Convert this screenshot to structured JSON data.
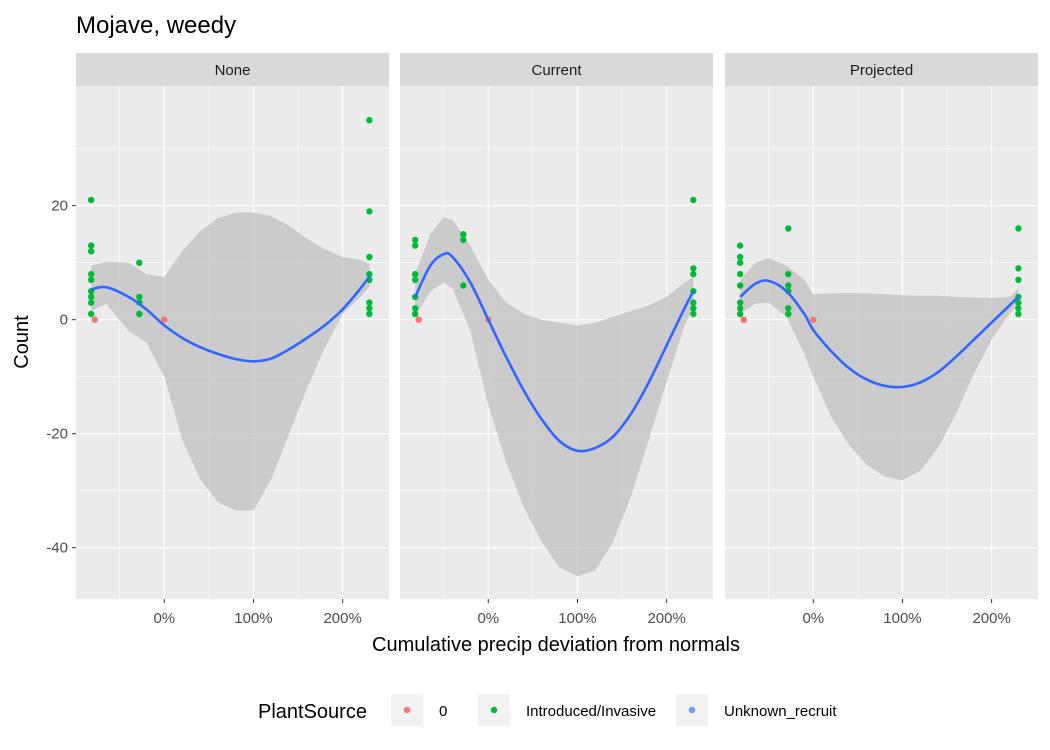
{
  "chart_data": {
    "type": "scatter",
    "title": "Mojave, weedy",
    "xlabel": "Cumulative precip deviation from normals",
    "ylabel": "Count",
    "xlim": [
      -0.99,
      2.52
    ],
    "ylim": [
      -49,
      41
    ],
    "x_ticks": [
      0,
      1,
      2
    ],
    "x_tick_labels": [
      "0%",
      "100%",
      "200%"
    ],
    "y_ticks": [
      -40,
      -20,
      0,
      20
    ],
    "y_tick_labels": [
      "-40",
      "-20",
      "0",
      "20"
    ],
    "grid": true,
    "legend": {
      "title": "PlantSource",
      "position": "bottom",
      "entries": [
        {
          "label": "0",
          "color": "#F8766D"
        },
        {
          "label": "Introduced/Invasive",
          "color": "#00BA38"
        },
        {
          "label": "Unknown_recruit",
          "color": "#619CFF"
        }
      ]
    },
    "colors": {
      "zero": "#F8766D",
      "introduced": "#00BA38",
      "unknown": "#619CFF",
      "smooth_line": "#3366FF",
      "ribbon": "#C0C0C0",
      "panel_bg": "#EBEBEB",
      "strip_bg": "#D9D9D9"
    },
    "panels": [
      {
        "label": "None",
        "points": [
          {
            "x": -0.82,
            "y": 21,
            "source": "Introduced/Invasive"
          },
          {
            "x": -0.82,
            "y": 13,
            "source": "Introduced/Invasive"
          },
          {
            "x": -0.82,
            "y": 12,
            "source": "Introduced/Invasive"
          },
          {
            "x": -0.82,
            "y": 8,
            "source": "Introduced/Invasive"
          },
          {
            "x": -0.82,
            "y": 7,
            "source": "Introduced/Invasive"
          },
          {
            "x": -0.82,
            "y": 5,
            "source": "Introduced/Invasive"
          },
          {
            "x": -0.82,
            "y": 4,
            "source": "Introduced/Invasive"
          },
          {
            "x": -0.82,
            "y": 3,
            "source": "Introduced/Invasive"
          },
          {
            "x": -0.82,
            "y": 1,
            "source": "Introduced/Invasive"
          },
          {
            "x": -0.78,
            "y": 0,
            "source": "0"
          },
          {
            "x": -0.28,
            "y": 10,
            "source": "Introduced/Invasive"
          },
          {
            "x": -0.28,
            "y": 4,
            "source": "Introduced/Invasive"
          },
          {
            "x": -0.28,
            "y": 3,
            "source": "Introduced/Invasive"
          },
          {
            "x": -0.28,
            "y": 1,
            "source": "Introduced/Invasive"
          },
          {
            "x": 0.0,
            "y": 0,
            "source": "0"
          },
          {
            "x": 2.3,
            "y": 35,
            "source": "Introduced/Invasive"
          },
          {
            "x": 2.3,
            "y": 19,
            "source": "Introduced/Invasive"
          },
          {
            "x": 2.3,
            "y": 11,
            "source": "Introduced/Invasive"
          },
          {
            "x": 2.3,
            "y": 8,
            "source": "Introduced/Invasive"
          },
          {
            "x": 2.3,
            "y": 7,
            "source": "Introduced/Invasive"
          },
          {
            "x": 2.3,
            "y": 3,
            "source": "Introduced/Invasive"
          },
          {
            "x": 2.3,
            "y": 2,
            "source": "Introduced/Invasive"
          },
          {
            "x": 2.3,
            "y": 1,
            "source": "Introduced/Invasive"
          }
        ],
        "smooth": {
          "x": [
            -0.82,
            -0.65,
            -0.4,
            -0.2,
            0.0,
            0.2,
            0.4,
            0.6,
            0.8,
            1.0,
            1.2,
            1.4,
            1.6,
            1.8,
            2.0,
            2.2,
            2.3
          ],
          "y": [
            5.3,
            5.7,
            4.0,
            1.8,
            -1.0,
            -3.2,
            -4.8,
            -6.0,
            -6.9,
            -7.3,
            -6.8,
            -5.2,
            -3.2,
            -1.0,
            1.8,
            5.5,
            7.6
          ],
          "ymin": [
            1.5,
            2.8,
            -2.0,
            -4.0,
            -10.0,
            -21.0,
            -28.0,
            -32.0,
            -33.5,
            -33.5,
            -28.0,
            -20.0,
            -12.0,
            -5.0,
            1.0,
            4.0,
            5.8
          ],
          "ymax": [
            9.5,
            10.2,
            10.0,
            8.0,
            7.5,
            12.0,
            15.5,
            17.8,
            18.8,
            18.8,
            18.2,
            16.5,
            14.2,
            12.4,
            11.0,
            10.5,
            9.8
          ]
        }
      },
      {
        "label": "Current",
        "points": [
          {
            "x": -0.82,
            "y": 14,
            "source": "Introduced/Invasive"
          },
          {
            "x": -0.82,
            "y": 13,
            "source": "Introduced/Invasive"
          },
          {
            "x": -0.82,
            "y": 8,
            "source": "Introduced/Invasive"
          },
          {
            "x": -0.82,
            "y": 7,
            "source": "Introduced/Invasive"
          },
          {
            "x": -0.82,
            "y": 4,
            "source": "Introduced/Invasive"
          },
          {
            "x": -0.82,
            "y": 2,
            "source": "Introduced/Invasive"
          },
          {
            "x": -0.82,
            "y": 1,
            "source": "Introduced/Invasive"
          },
          {
            "x": -0.78,
            "y": 0,
            "source": "0"
          },
          {
            "x": -0.28,
            "y": 15,
            "source": "Introduced/Invasive"
          },
          {
            "x": -0.28,
            "y": 14,
            "source": "Introduced/Invasive"
          },
          {
            "x": -0.28,
            "y": 6,
            "source": "Introduced/Invasive"
          },
          {
            "x": 0.0,
            "y": 0,
            "source": "0"
          },
          {
            "x": 2.3,
            "y": 21,
            "source": "Introduced/Invasive"
          },
          {
            "x": 2.3,
            "y": 9,
            "source": "Introduced/Invasive"
          },
          {
            "x": 2.3,
            "y": 8,
            "source": "Introduced/Invasive"
          },
          {
            "x": 2.3,
            "y": 5,
            "source": "Introduced/Invasive"
          },
          {
            "x": 2.3,
            "y": 3,
            "source": "Introduced/Invasive"
          },
          {
            "x": 2.3,
            "y": 2,
            "source": "Introduced/Invasive"
          },
          {
            "x": 2.3,
            "y": 1,
            "source": "Introduced/Invasive"
          }
        ],
        "smooth": {
          "x": [
            -0.82,
            -0.65,
            -0.5,
            -0.4,
            -0.2,
            0.0,
            0.2,
            0.4,
            0.6,
            0.8,
            1.0,
            1.2,
            1.4,
            1.6,
            1.8,
            2.0,
            2.2,
            2.3
          ],
          "y": [
            4.0,
            9.5,
            11.5,
            11.0,
            6.5,
            0.0,
            -6.5,
            -12.5,
            -17.5,
            -21.3,
            -23.0,
            -22.5,
            -20.5,
            -16.5,
            -11.0,
            -4.5,
            2.0,
            5.0
          ],
          "ymin": [
            0.5,
            5.0,
            6.5,
            5.5,
            -2.0,
            -15.0,
            -25.0,
            -33.0,
            -39.0,
            -43.5,
            -45.0,
            -44.0,
            -39.0,
            -31.0,
            -21.0,
            -11.0,
            -1.0,
            2.0
          ],
          "ymax": [
            8.0,
            15.0,
            18.0,
            17.5,
            13.0,
            7.0,
            3.0,
            1.0,
            0.0,
            -0.5,
            -1.0,
            -0.5,
            0.5,
            1.5,
            2.5,
            4.0,
            6.5,
            7.5
          ]
        }
      },
      {
        "label": "Projected",
        "points": [
          {
            "x": -0.82,
            "y": 13,
            "source": "Introduced/Invasive"
          },
          {
            "x": -0.82,
            "y": 11,
            "source": "Introduced/Invasive"
          },
          {
            "x": -0.82,
            "y": 10,
            "source": "Introduced/Invasive"
          },
          {
            "x": -0.82,
            "y": 8,
            "source": "Introduced/Invasive"
          },
          {
            "x": -0.82,
            "y": 6,
            "source": "Introduced/Invasive"
          },
          {
            "x": -0.82,
            "y": 3,
            "source": "Introduced/Invasive"
          },
          {
            "x": -0.82,
            "y": 2,
            "source": "Introduced/Invasive"
          },
          {
            "x": -0.82,
            "y": 1,
            "source": "Introduced/Invasive"
          },
          {
            "x": -0.78,
            "y": 0,
            "source": "0"
          },
          {
            "x": -0.28,
            "y": 16,
            "source": "Introduced/Invasive"
          },
          {
            "x": -0.28,
            "y": 8,
            "source": "Introduced/Invasive"
          },
          {
            "x": -0.28,
            "y": 6,
            "source": "Introduced/Invasive"
          },
          {
            "x": -0.28,
            "y": 5,
            "source": "Introduced/Invasive"
          },
          {
            "x": -0.28,
            "y": 2,
            "source": "Introduced/Invasive"
          },
          {
            "x": -0.28,
            "y": 1,
            "source": "Introduced/Invasive"
          },
          {
            "x": 0.0,
            "y": 0,
            "source": "0"
          },
          {
            "x": 2.3,
            "y": 16,
            "source": "Introduced/Invasive"
          },
          {
            "x": 2.3,
            "y": 9,
            "source": "Introduced/Invasive"
          },
          {
            "x": 2.3,
            "y": 7,
            "source": "Introduced/Invasive"
          },
          {
            "x": 2.3,
            "y": 4,
            "source": "Introduced/Invasive"
          },
          {
            "x": 2.3,
            "y": 3,
            "source": "Introduced/Invasive"
          },
          {
            "x": 2.3,
            "y": 2,
            "source": "Introduced/Invasive"
          },
          {
            "x": 2.3,
            "y": 1,
            "source": "Introduced/Invasive"
          }
        ],
        "smooth": {
          "x": [
            -0.82,
            -0.65,
            -0.5,
            -0.3,
            -0.1,
            0.0,
            0.2,
            0.4,
            0.6,
            0.8,
            1.0,
            1.2,
            1.4,
            1.6,
            1.8,
            2.0,
            2.2,
            2.3
          ],
          "y": [
            4.0,
            6.3,
            6.8,
            5.0,
            1.0,
            -1.8,
            -5.5,
            -8.5,
            -10.5,
            -11.6,
            -11.8,
            -11.0,
            -9.2,
            -6.5,
            -3.5,
            -0.5,
            2.5,
            4.0
          ],
          "ymin": [
            1.0,
            2.8,
            3.0,
            0.5,
            -6.0,
            -10.0,
            -17.0,
            -22.0,
            -25.5,
            -27.5,
            -28.2,
            -26.5,
            -22.5,
            -16.5,
            -9.5,
            -3.5,
            1.0,
            2.8
          ],
          "ymax": [
            7.0,
            10.0,
            10.8,
            9.5,
            7.0,
            4.5,
            4.6,
            4.7,
            4.6,
            4.5,
            4.3,
            4.2,
            4.2,
            4.0,
            3.9,
            3.8,
            4.0,
            5.5
          ]
        }
      }
    ]
  }
}
